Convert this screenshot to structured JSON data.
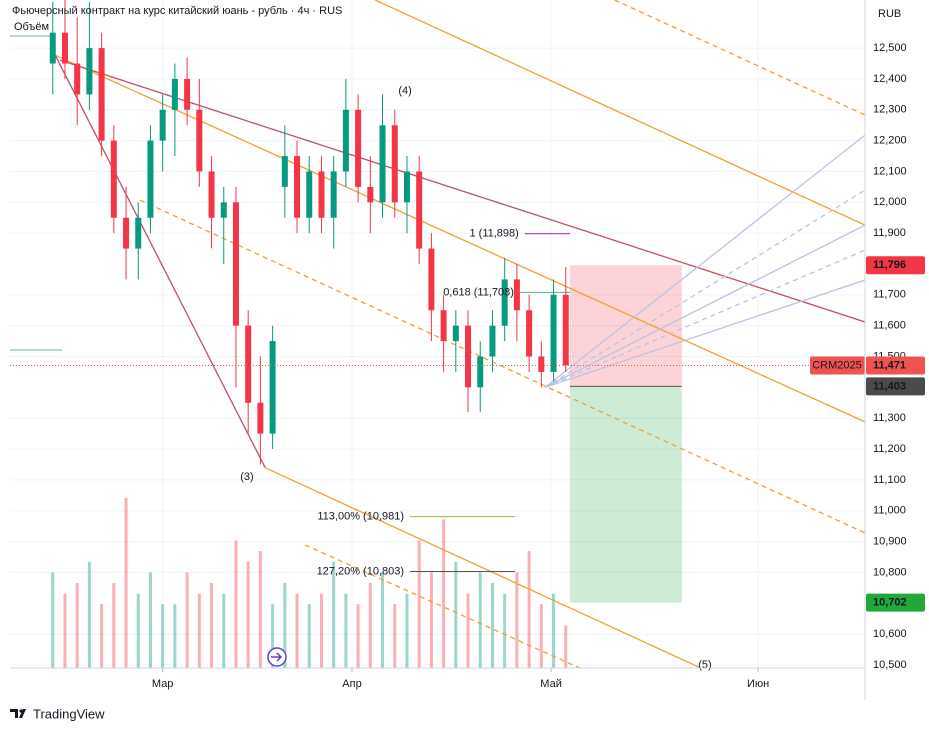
{
  "chart_data": {
    "type": "candlestick",
    "title": "Фьючерсный контракт на курс китайский юань - рубль · 4ч · RUS",
    "volume_label": "Объём",
    "currency": "RUB",
    "symbol": "CRM2025",
    "watermark": "TradingView",
    "xlim": [
      0,
      140
    ],
    "xticks": [
      {
        "value": 25,
        "label": "Мар"
      },
      {
        "value": 56,
        "label": "Апр"
      },
      {
        "value": 88.6,
        "label": "Май"
      },
      {
        "value": 122.5,
        "label": "Июн"
      }
    ],
    "ylim": [
      10490,
      12656
    ],
    "yticks": [
      {
        "value": 12500,
        "label": "12,500"
      },
      {
        "value": 12400,
        "label": "12,400"
      },
      {
        "value": 12300,
        "label": "12,300"
      },
      {
        "value": 12200,
        "label": "12,200"
      },
      {
        "value": 12100,
        "label": "12,100"
      },
      {
        "value": 12000,
        "label": "12,000"
      },
      {
        "value": 11900,
        "label": "11,900"
      },
      {
        "value": 11700,
        "label": "11,700"
      },
      {
        "value": 11600,
        "label": "11,600"
      },
      {
        "value": 11500,
        "label": "11,500"
      },
      {
        "value": 11300,
        "label": "11,300"
      },
      {
        "value": 11200,
        "label": "11,200"
      },
      {
        "value": 11100,
        "label": "11,100"
      },
      {
        "value": 11000,
        "label": "11,000"
      },
      {
        "value": 10900,
        "label": "10,900"
      },
      {
        "value": 10800,
        "label": "10,800"
      },
      {
        "value": 10600,
        "label": "10,600"
      },
      {
        "value": 10500,
        "label": "10,500"
      }
    ],
    "grid": true,
    "up_color": "#089981",
    "down_color": "#f23645",
    "x": [
      7,
      9,
      11,
      13,
      15,
      17,
      19,
      21,
      23,
      25,
      27,
      29,
      31,
      33,
      35,
      37,
      39,
      41,
      43,
      45,
      47,
      49,
      51,
      53,
      55,
      57,
      59,
      61,
      63,
      65,
      67,
      69,
      71,
      73,
      75,
      77,
      79,
      81,
      83,
      85,
      87,
      89,
      91
    ],
    "open": [
      12450,
      12550,
      12450,
      12350,
      12500,
      12200,
      11950,
      11850,
      11950,
      12200,
      12300,
      12400,
      12300,
      12100,
      11950,
      12000,
      11600,
      11350,
      11250,
      12050,
      12150,
      11950,
      12100,
      11950,
      12100,
      12300,
      12050,
      12000,
      12250,
      12000,
      12100,
      11850,
      11650,
      11550,
      11600,
      11400,
      11500,
      11600,
      11750,
      11650,
      11500,
      11450,
      11700
    ],
    "high": [
      12650,
      12700,
      12600,
      12650,
      12550,
      12250,
      12050,
      12000,
      12250,
      12350,
      12450,
      12470,
      12400,
      12150,
      12050,
      12050,
      11650,
      11500,
      11600,
      12250,
      12200,
      12150,
      12150,
      12150,
      12400,
      12350,
      12150,
      12350,
      12300,
      12150,
      12150,
      11900,
      11700,
      11650,
      11650,
      11550,
      11650,
      11820,
      11800,
      11700,
      11550,
      11750,
      11790
    ],
    "low": [
      12350,
      12400,
      12250,
      12300,
      12150,
      11900,
      11750,
      11750,
      11900,
      12100,
      12150,
      12250,
      12050,
      11850,
      11800,
      11400,
      11250,
      11150,
      11200,
      11950,
      11900,
      11900,
      11900,
      11850,
      12050,
      12000,
      11900,
      11950,
      11950,
      11900,
      11800,
      11550,
      11450,
      11450,
      11320,
      11320,
      11450,
      11550,
      11550,
      11450,
      11400,
      11420,
      11450
    ],
    "close": [
      12550,
      12450,
      12350,
      12500,
      12200,
      11950,
      11850,
      11950,
      12200,
      12300,
      12400,
      12300,
      12100,
      11950,
      12000,
      11600,
      11350,
      11250,
      11550,
      12150,
      11950,
      12100,
      11950,
      12100,
      12300,
      12050,
      12000,
      12250,
      12000,
      12100,
      11850,
      11650,
      11550,
      11600,
      11400,
      11500,
      11600,
      11750,
      11650,
      11500,
      11450,
      11700,
      11471
    ],
    "volume": [
      90,
      70,
      80,
      100,
      60,
      80,
      160,
      70,
      90,
      60,
      60,
      90,
      70,
      80,
      70,
      120,
      100,
      110,
      60,
      80,
      70,
      60,
      70,
      100,
      70,
      60,
      80,
      90,
      60,
      70,
      120,
      90,
      140,
      100,
      70,
      90,
      80,
      70,
      90,
      110,
      60,
      70,
      40
    ],
    "last_price": {
      "value": 11471,
      "label": "11,471"
    },
    "channels": [
      {
        "color": "#f0a030",
        "dashed": false,
        "x": [
          59.8,
          140
        ],
        "y": [
          12656,
          11926
        ]
      },
      {
        "color": "#f0a030",
        "dashed": false,
        "x": [
          7.4,
          140
        ],
        "y": [
          12477,
          11288
        ]
      },
      {
        "color": "#f0a030",
        "dashed": false,
        "x": [
          41.8,
          113.1
        ],
        "y": [
          11139,
          10490
        ]
      },
      {
        "color": "#f0a030",
        "dashed": true,
        "x": [
          99,
          140
        ],
        "y": [
          12656,
          12283
        ]
      },
      {
        "color": "#f0a030",
        "dashed": true,
        "x": [
          21.3,
          140
        ],
        "y": [
          12007,
          10928
        ]
      },
      {
        "color": "#f0a030",
        "dashed": true,
        "x": [
          48.3,
          93.3
        ],
        "y": [
          10889,
          10490
        ]
      },
      {
        "color": "#c0506a",
        "dashed": false,
        "x": [
          8.2,
          140
        ],
        "y": [
          12461,
          11612
        ]
      },
      {
        "color": "#c0506a",
        "dashed": false,
        "x": [
          7.4,
          41.8
        ],
        "y": [
          12477,
          11139
        ]
      },
      {
        "color": "#b8c4e6",
        "dashed": false,
        "x": [
          87.6,
          140
        ],
        "y": [
          11400,
          12218
        ]
      },
      {
        "color": "#b8c4e6",
        "dashed": true,
        "x": [
          87.6,
          140
        ],
        "y": [
          11400,
          12040
        ]
      },
      {
        "color": "#b8c4e6",
        "dashed": false,
        "x": [
          87.6,
          140
        ],
        "y": [
          11400,
          11926
        ]
      },
      {
        "color": "#b8c4e6",
        "dashed": true,
        "x": [
          87.6,
          140
        ],
        "y": [
          11400,
          11845
        ]
      },
      {
        "color": "#b8c4e6",
        "dashed": false,
        "x": [
          87.6,
          140
        ],
        "y": [
          11400,
          11748
        ]
      }
    ],
    "fib_levels": [
      {
        "label": "1 (11,898)",
        "value": 11898,
        "x": [
          84.3,
          91.7
        ],
        "color": "#9c27b0"
      },
      {
        "label": "0,618 (11,708)",
        "value": 11708,
        "x": [
          83.5,
          91.7
        ],
        "color": "#4caf88"
      },
      {
        "label": "113,00% (10,981)",
        "value": 10981,
        "x": [
          65.5,
          82.7
        ],
        "color": "#9ab82a"
      },
      {
        "label": "127,20% (10,803)",
        "value": 10803,
        "x": [
          65.5,
          82.7
        ],
        "color": "#555555"
      }
    ],
    "waves": [
      {
        "label": "(3)",
        "x": 38.8,
        "y": 11109
      },
      {
        "label": "(4)",
        "x": 64.7,
        "y": 12361
      },
      {
        "label": "(5)",
        "x": 113.8,
        "y": 10500
      }
    ],
    "position": {
      "x": [
        91.7,
        110
      ],
      "stop": {
        "value": 11796,
        "label": "11,796"
      },
      "entry": {
        "value": 11403,
        "label": "11,403"
      },
      "target": {
        "value": 10702,
        "label": "10,702"
      }
    }
  }
}
